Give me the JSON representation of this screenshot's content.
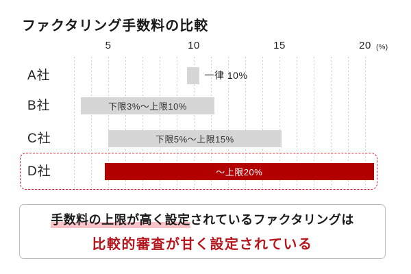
{
  "page": {
    "title": "ファクタリング手数料の比較"
  },
  "chart_data": {
    "type": "bar",
    "orientation": "horizontal",
    "title": "ファクタリング手数料の比較",
    "unit": "(%)",
    "x_ticks": [
      5,
      10,
      15,
      20
    ],
    "x_gridlines": {
      "from": 3,
      "to": 20,
      "step": 1
    },
    "categories": [
      "A社",
      "B社",
      "C社",
      "D社"
    ],
    "bars": [
      {
        "category": "A社",
        "label": "一律 10%",
        "value_min_pct": 10,
        "value_max_pct": 10,
        "draw_start_pct": 9.6,
        "draw_end_pct": 10.3,
        "label_position": "right",
        "color": "#d6d6d6",
        "text_color": "#1a1a1a",
        "emphasized": false
      },
      {
        "category": "B社",
        "label": "下限3%～上限10%",
        "value_min_pct": 3,
        "value_max_pct": 10,
        "draw_start_pct": 3.4,
        "draw_end_pct": 11.2,
        "label_position": "inside",
        "color": "#d6d6d6",
        "text_color": "#333333",
        "emphasized": false
      },
      {
        "category": "C社",
        "label": "下限5%～上限15%",
        "value_min_pct": 5,
        "value_max_pct": 15,
        "draw_start_pct": 5.0,
        "draw_end_pct": 15.1,
        "label_position": "inside",
        "color": "#d6d6d6",
        "text_color": "#333333",
        "emphasized": false
      },
      {
        "category": "D社",
        "label": "～上限20%",
        "value_min_pct": null,
        "value_max_pct": 20,
        "draw_start_pct": 4.8,
        "draw_end_pct": 20.5,
        "label_position": "inside",
        "color": "#b20000",
        "text_color": "#ffffff",
        "emphasized": true
      }
    ],
    "legend": null,
    "grid": "vertical-dotted"
  },
  "callout": {
    "line1_highlighted": "手数料の上限が高く設定",
    "line1_rest": "されているファクタリングは",
    "line2": "比較的審査が甘く設定されている"
  },
  "colors": {
    "bar_gray": "#d6d6d6",
    "bar_red": "#b20000",
    "emphasis_border_red": "#d61a2c",
    "callout_border": "#bbbbbb",
    "highlight_pink": "#f9c3c9",
    "callout_red_text": "#b5161d",
    "gridline": "#cdcdcd"
  }
}
